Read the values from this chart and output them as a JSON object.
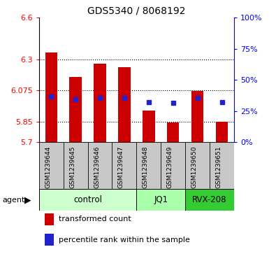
{
  "title": "GDS5340 / 8068192",
  "samples": [
    "GSM1239644",
    "GSM1239645",
    "GSM1239646",
    "GSM1239647",
    "GSM1239648",
    "GSM1239649",
    "GSM1239650",
    "GSM1239651"
  ],
  "bar_heights": [
    6.35,
    6.17,
    6.27,
    6.245,
    5.93,
    5.845,
    6.07,
    5.85
  ],
  "blue_y": [
    6.028,
    6.01,
    6.02,
    6.02,
    5.99,
    5.983,
    6.02,
    5.99
  ],
  "bar_color": "#cc0000",
  "blue_color": "#2222cc",
  "baseline": 5.7,
  "ylim": [
    5.7,
    6.6
  ],
  "yticks_left": [
    5.7,
    5.85,
    6.075,
    6.3,
    6.6
  ],
  "yticks_right": [
    0,
    25,
    50,
    75,
    100
  ],
  "groups": [
    {
      "label": "control",
      "start": 0,
      "end": 4,
      "color": "#ccffcc"
    },
    {
      "label": "JQ1",
      "start": 4,
      "end": 6,
      "color": "#aaffaa"
    },
    {
      "label": "RVX-208",
      "start": 6,
      "end": 8,
      "color": "#33cc33"
    }
  ],
  "legend_labels": [
    "transformed count",
    "percentile rank within the sample"
  ],
  "agent_label": "agent",
  "sample_bg": "#c8c8c8",
  "plot_bg": "#ffffff",
  "bar_width": 0.5
}
